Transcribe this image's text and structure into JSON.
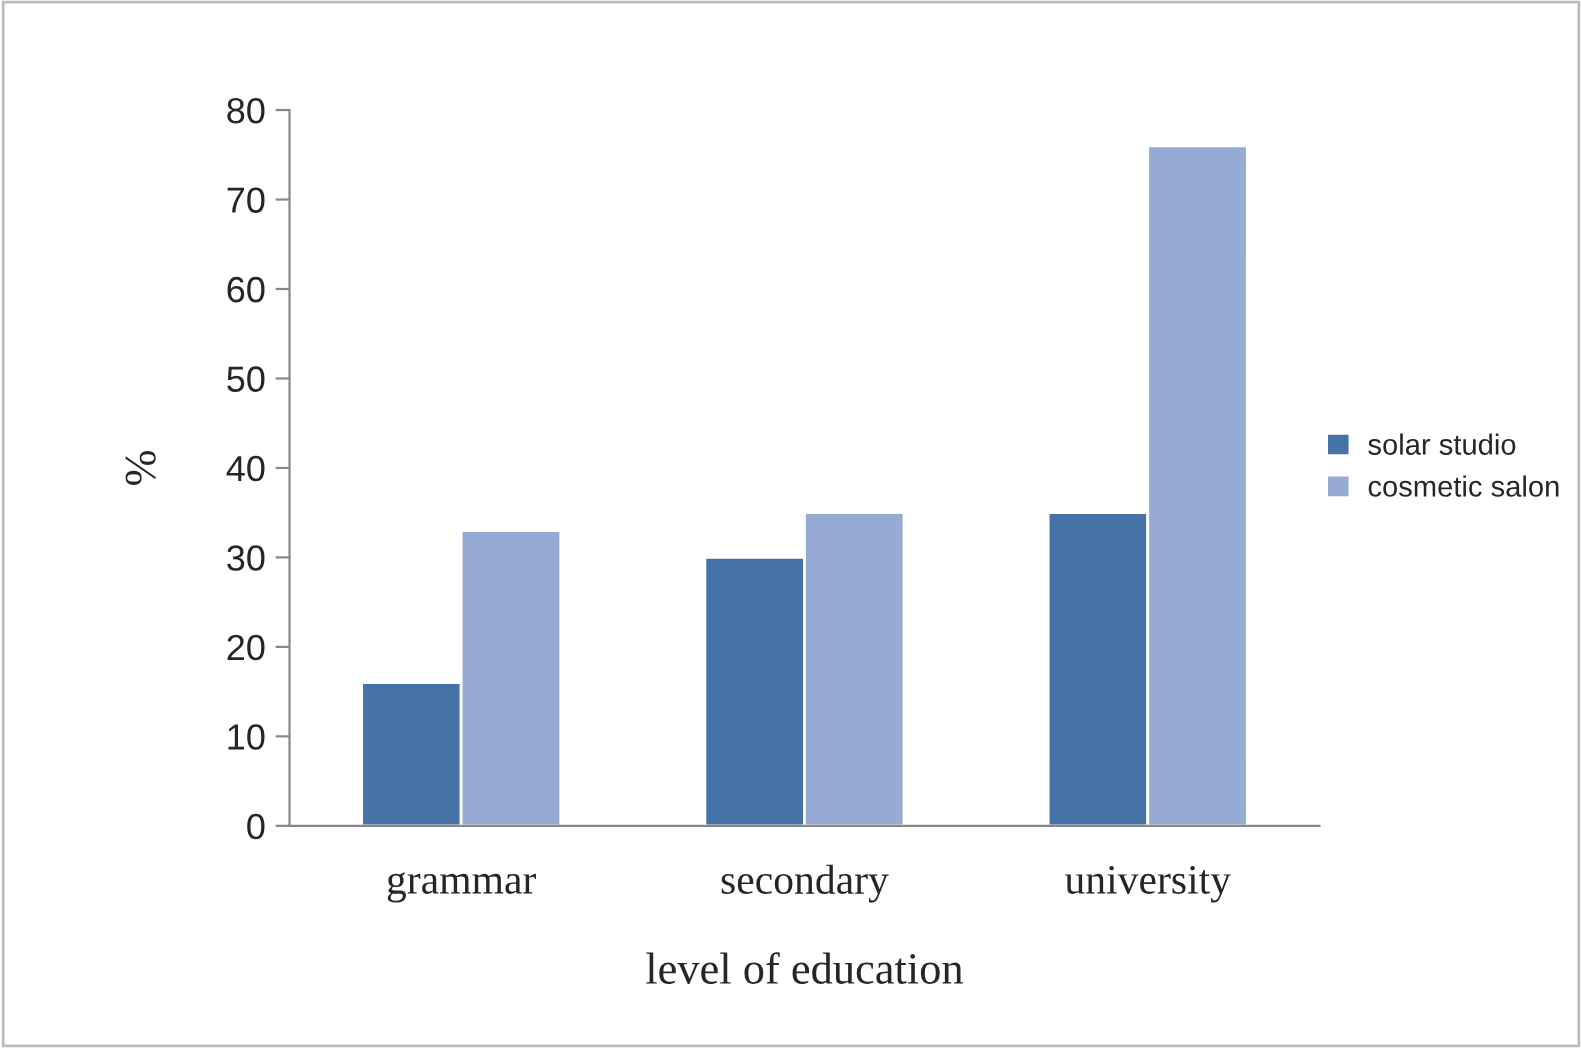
{
  "chart_data": {
    "type": "bar",
    "xlabel": "level of education",
    "ylabel": "%",
    "categories": [
      "grammar",
      "secondary",
      "university"
    ],
    "series": [
      {
        "name": "solar studio",
        "color": "#4572a7",
        "values": [
          16,
          30,
          35
        ]
      },
      {
        "name": "cosmetic salon",
        "color": "#95abd4",
        "values": [
          33,
          35,
          76
        ]
      }
    ],
    "ylim": [
      0,
      80
    ],
    "yticks": [
      0,
      10,
      20,
      30,
      40,
      50,
      60,
      70,
      80
    ],
    "grid": false,
    "legend": "right"
  }
}
